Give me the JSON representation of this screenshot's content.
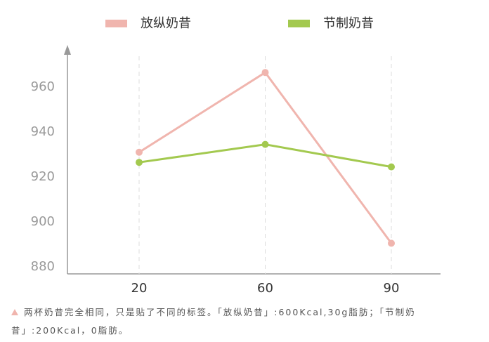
{
  "chart_data": {
    "type": "line",
    "categories": [
      "20",
      "60",
      "90"
    ],
    "series": [
      {
        "name": "放纵奶昔",
        "color": "#f0b5ae",
        "values": [
          931,
          966.5,
          890.5
        ]
      },
      {
        "name": "节制奶昔",
        "color": "#a3c94f",
        "values": [
          926.5,
          934.5,
          924.5
        ]
      }
    ],
    "ylim": [
      877,
      977.5
    ],
    "yticks": [
      880,
      900,
      920,
      940,
      960
    ],
    "grid": true
  },
  "caption": "两杯奶昔完全相同，只是贴了不同的标签。「放纵奶昔」:600Kcal,30g脂肪；「节制奶昔」:200Kcal，0脂肪。"
}
